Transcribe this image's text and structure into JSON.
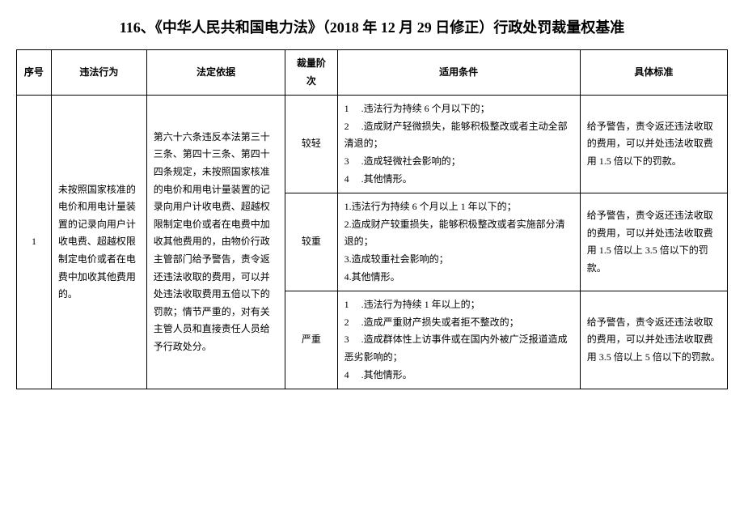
{
  "document": {
    "title": "116、《中华人民共和国电力法》（2018 年 12 月 29 日修正）行政处罚裁量权基准",
    "background_color": "#ffffff",
    "border_color": "#000000",
    "text_color": "#000000",
    "title_fontsize": 18,
    "cell_fontsize": 12
  },
  "table": {
    "headers": {
      "seq": "序号",
      "illegal_act": "违法行为",
      "legal_basis": "法定依据",
      "discretion_level": "裁量阶次",
      "conditions": "适用条件",
      "standard": "具体标准"
    },
    "columns": {
      "seq_width": 40,
      "illegal_width": 110,
      "basis_width": 160,
      "level_width": 60,
      "condition_width": 280,
      "standard_width": 170
    },
    "rows": [
      {
        "seq": "1",
        "illegal_act": "未按照国家核准的电价和用电计量装置的记录向用户计收电费、超越权限制定电价或者在电费中加收其他费用的。",
        "legal_basis": "第六十六条违反本法第三十三条、第四十三条、第四十四条规定，未按照国家核准的电价和用电计量装置的记录向用户计收电费、超越权限制定电价或者在电费中加收其他费用的，由物价行政主管部门给予警告，责令返还违法收取的费用，可以并处违法收取费用五倍以下的罚款；情节严重的，对有关主管人员和直接责任人员给予行政处分。",
        "levels": [
          {
            "level": "较轻",
            "conditions": "1     .违法行为持续 6 个月以下的；\n2     .造成财产轻微损失，能够积极整改或者主动全部清退的；\n3     .造成轻微社会影响的；\n4     .其他情形。",
            "standard": "给予警告，责令返还违法收取的费用，可以并处违法收取费用 1.5 倍以下的罚款。"
          },
          {
            "level": "较重",
            "conditions": "1.违法行为持续 6 个月以上 1 年以下的；\n2.造成财产较重损失，能够积极整改或者实施部分清退的；\n3.造成较重社会影响的；\n4.其他情形。",
            "standard": "给予警告，责令返还违法收取的费用，可以并处违法收取费用 1.5 倍以上 3.5 倍以下的罚款。"
          },
          {
            "level": "严重",
            "conditions": "1     .违法行为持续 1 年以上的；\n2     .造成严重财产损失或者拒不整改的；\n3     .造成群体性上访事件或在国内外被广泛报道造成恶劣影响的；\n4     .其他情形。",
            "standard": "给予警告，责令返还违法收取的费用，可以并处违法收取费用 3.5 倍以上 5 倍以下的罚款。"
          }
        ]
      }
    ]
  }
}
